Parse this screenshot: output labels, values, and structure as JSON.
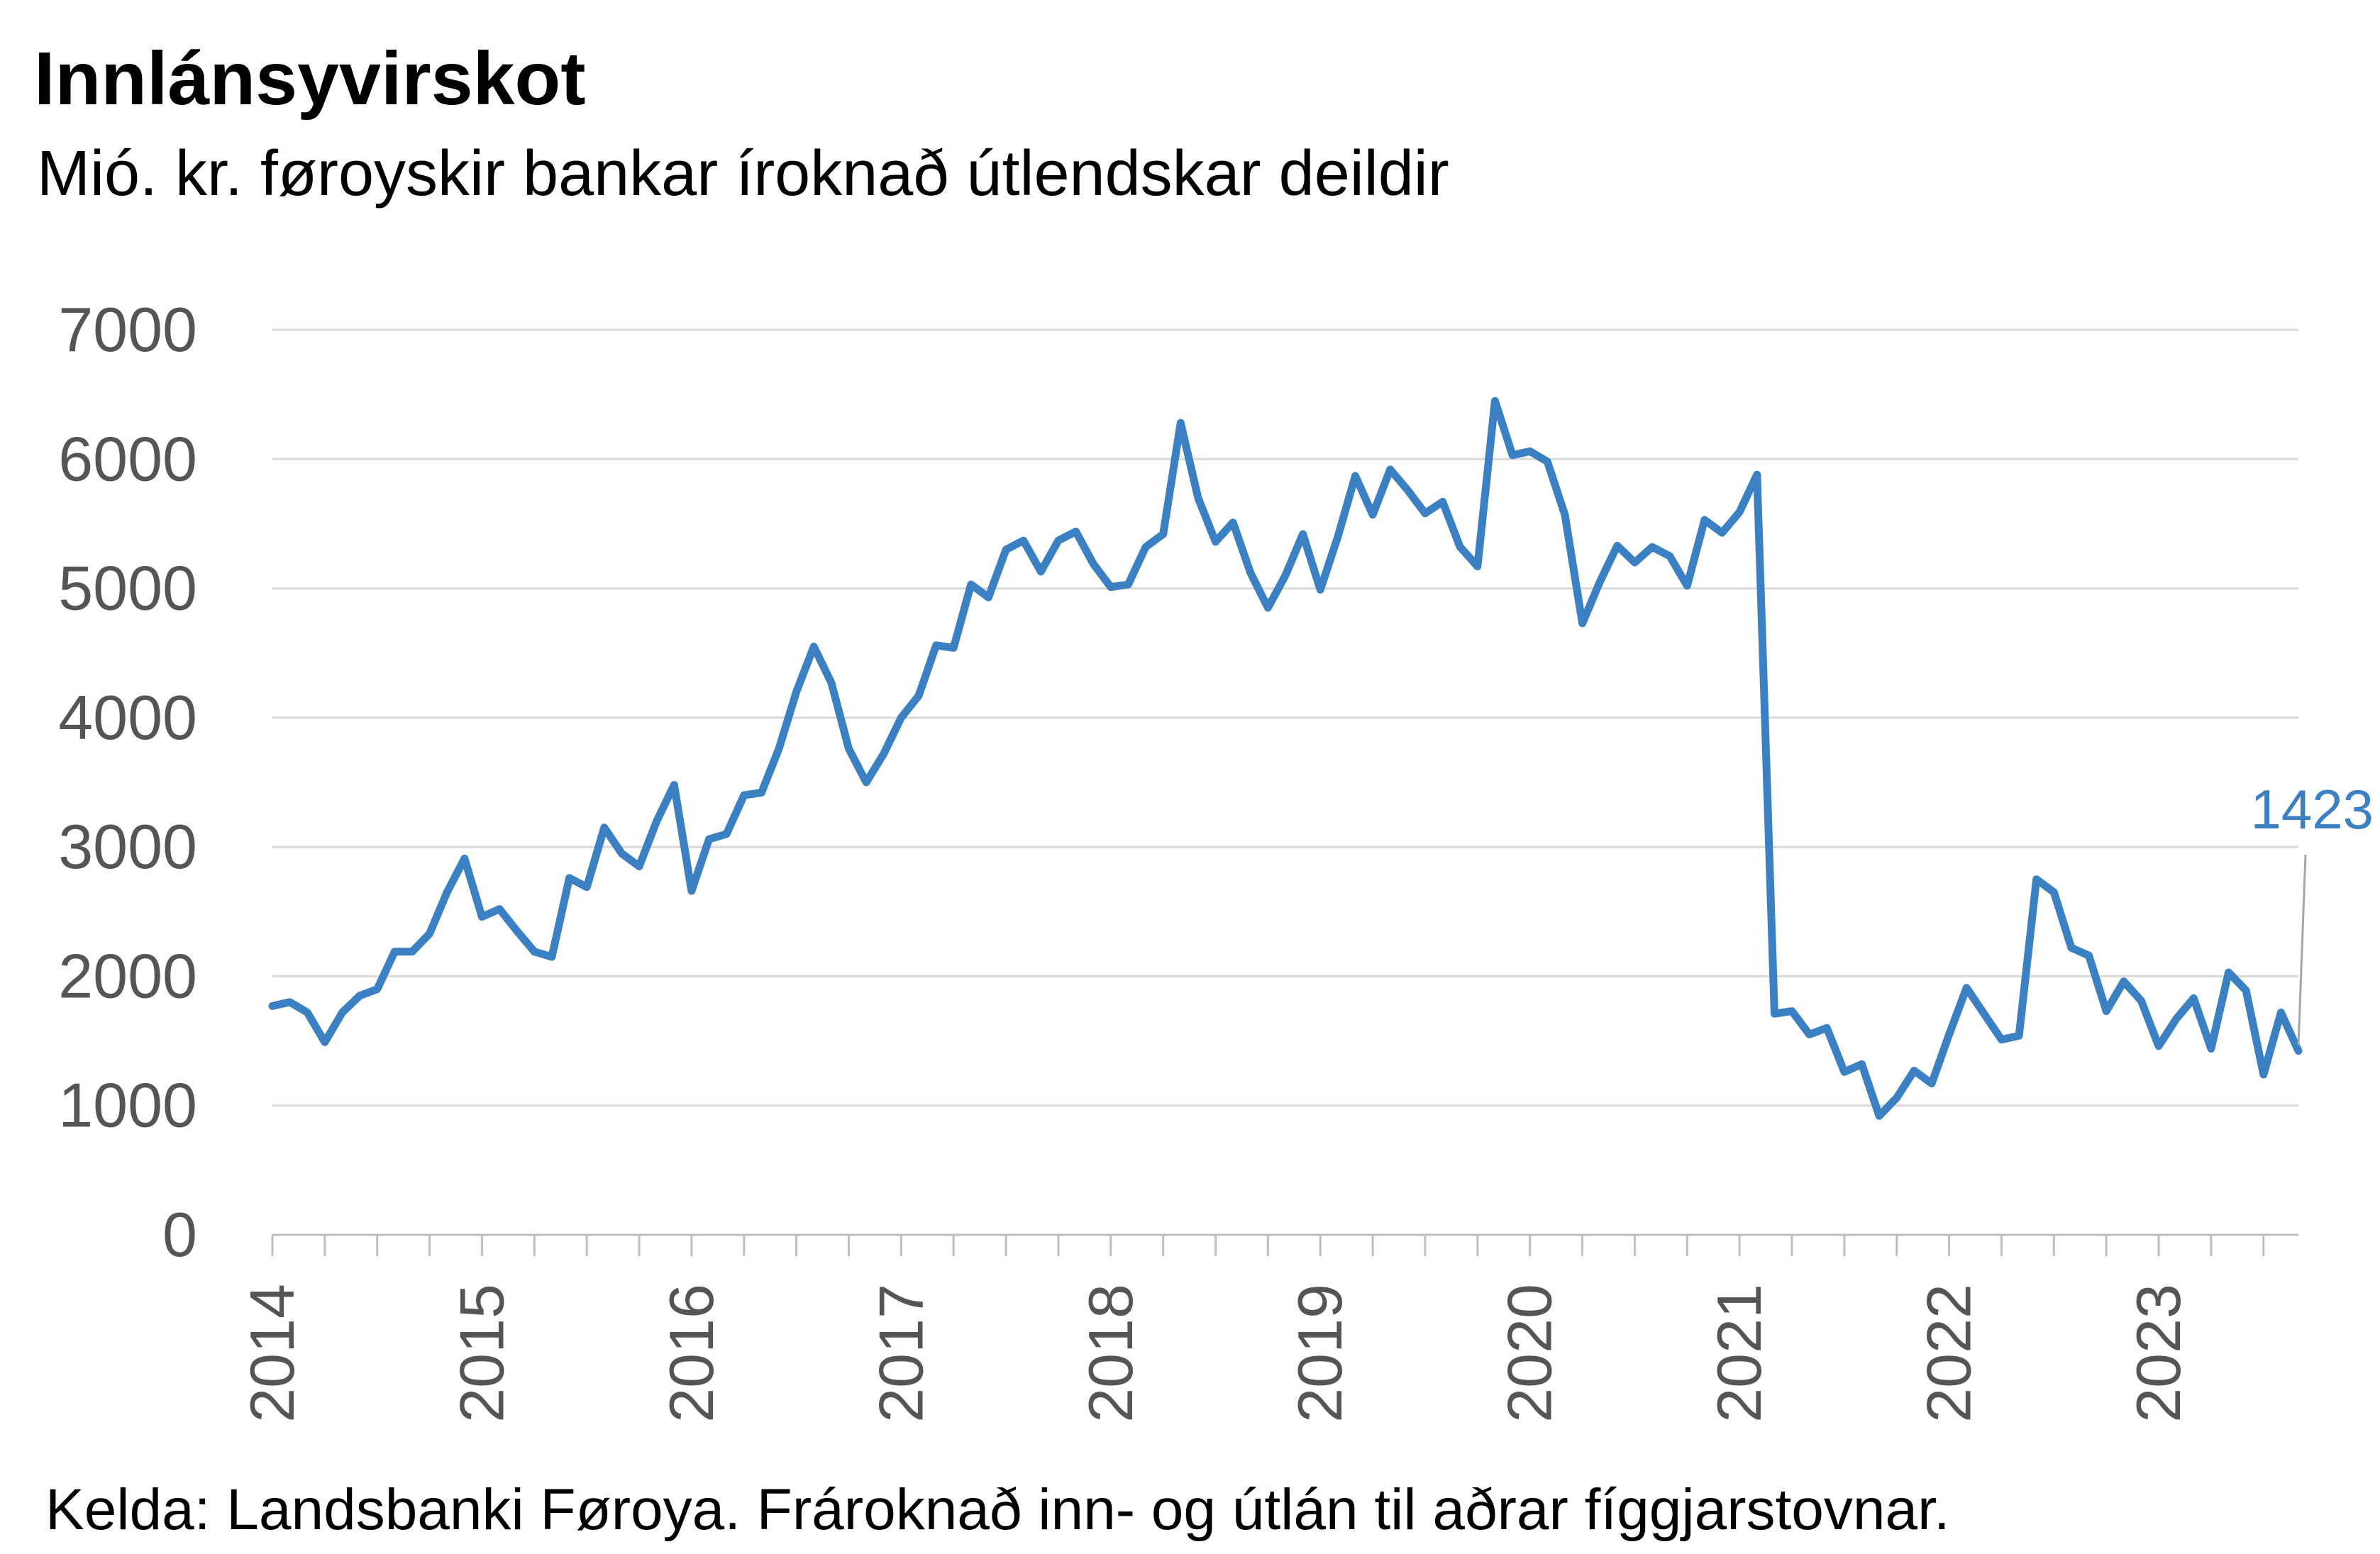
{
  "header": {
    "title": "Innlánsyvirskot",
    "subtitle": "Mió. kr. føroyskir bankar íroknað útlendskar deildir"
  },
  "footer": {
    "source": "Kelda: Landsbanki Føroya. Frároknað inn- og útlán til aðrar fíggjarstovnar."
  },
  "colors": {
    "series": "#3a80c2",
    "grid": "#d9d9d9",
    "axis": "#bfbfbf",
    "tick_text": "#555555",
    "leader": "#a6a6a6"
  },
  "chart_data": {
    "type": "line",
    "title": "Innlánsyvirskot",
    "subtitle": "Mió. kr. føroyskir bankar íroknað útlendskar deildir",
    "xlabel": "",
    "ylabel": "",
    "ylim": [
      0,
      7000
    ],
    "yticks": [
      0,
      1000,
      2000,
      3000,
      4000,
      5000,
      6000,
      7000
    ],
    "year_ticks": [
      "2014",
      "2015",
      "2016",
      "2017",
      "2018",
      "2019",
      "2020",
      "2021",
      "2022",
      "2023"
    ],
    "x_start": "2014-01",
    "x_end": "2023-09",
    "grid": true,
    "legend": "none",
    "end_label": "1423",
    "series": [
      {
        "values": [
          1770,
          1800,
          1720,
          1490,
          1720,
          1850,
          1900,
          2190,
          2190,
          2330,
          2650,
          2910,
          2460,
          2520,
          2350,
          2190,
          2150,
          2760,
          2690,
          3150,
          2950,
          2850,
          3200,
          3480,
          2660,
          3060,
          3100,
          3400,
          3420,
          3760,
          4200,
          4550,
          4270,
          3760,
          3500,
          3720,
          4000,
          4170,
          4560,
          4540,
          5030,
          4930,
          5300,
          5370,
          5130,
          5370,
          5440,
          5190,
          5010,
          5030,
          5320,
          5420,
          6280,
          5700,
          5360,
          5510,
          5120,
          4850,
          5100,
          5420,
          4990,
          5400,
          5870,
          5570,
          5920,
          5760,
          5580,
          5670,
          5320,
          5170,
          6450,
          6030,
          6060,
          5980,
          5570,
          4730,
          5050,
          5330,
          5200,
          5320,
          5250,
          5020,
          5530,
          5430,
          5590,
          5880,
          1710,
          1730,
          1550,
          1600,
          1260,
          1320,
          920,
          1060,
          1270,
          1170,
          1550,
          1910,
          1710,
          1510,
          1540,
          2750,
          2650,
          2220,
          2160,
          1730,
          1960,
          1810,
          1460,
          1670,
          1830,
          1440,
          2030,
          1890,
          1240,
          1720,
          1423
        ]
      }
    ]
  }
}
